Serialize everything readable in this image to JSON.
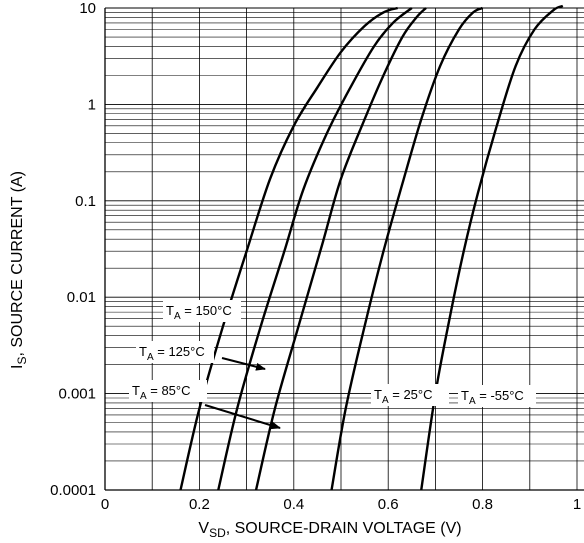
{
  "chart_data": {
    "type": "line",
    "x_scale": "linear",
    "y_scale": "log",
    "xlabel": {
      "main": "V",
      "sub": "SD",
      "rest": ", SOURCE-DRAIN VOLTAGE (V)"
    },
    "ylabel": {
      "main": "I",
      "sub": "S",
      "rest": ", SOURCE CURRENT (A)"
    },
    "xlim": [
      0,
      1.0
    ],
    "ylim": [
      0.0001,
      10
    ],
    "x_tick_labels": [
      "0",
      "0.2",
      "0.4",
      "0.6",
      "0.8",
      "1"
    ],
    "y_tick_labels": [
      "0.0001",
      "0.001",
      "0.01",
      "0.1",
      "1",
      "10"
    ],
    "grid": true,
    "series": [
      {
        "label_main": "T",
        "label_sub": "A",
        "label_rest": " = 150°C",
        "points": [
          [
            0.16,
            0.0001
          ],
          [
            0.2,
            0.0007
          ],
          [
            0.25,
            0.005
          ],
          [
            0.3,
            0.03
          ],
          [
            0.35,
            0.17
          ],
          [
            0.4,
            0.6
          ],
          [
            0.45,
            1.5
          ],
          [
            0.5,
            3.5
          ],
          [
            0.55,
            6.5
          ],
          [
            0.59,
            9
          ],
          [
            0.62,
            10
          ]
        ]
      },
      {
        "label_main": "T",
        "label_sub": "A",
        "label_rest": " = 125°C",
        "points": [
          [
            0.24,
            0.0001
          ],
          [
            0.28,
            0.0007
          ],
          [
            0.33,
            0.005
          ],
          [
            0.38,
            0.03
          ],
          [
            0.42,
            0.13
          ],
          [
            0.47,
            0.5
          ],
          [
            0.52,
            1.5
          ],
          [
            0.57,
            4
          ],
          [
            0.61,
            7
          ],
          [
            0.65,
            10
          ]
        ]
      },
      {
        "label_main": "T",
        "label_sub": "A",
        "label_rest": " = 85°C",
        "points": [
          [
            0.32,
            0.0001
          ],
          [
            0.36,
            0.0007
          ],
          [
            0.41,
            0.005
          ],
          [
            0.46,
            0.035
          ],
          [
            0.5,
            0.17
          ],
          [
            0.55,
            0.7
          ],
          [
            0.59,
            2
          ],
          [
            0.63,
            5
          ],
          [
            0.66,
            8
          ],
          [
            0.68,
            10
          ]
        ]
      },
      {
        "label_main": "T",
        "label_sub": "A",
        "label_rest": " = 25°C",
        "points": [
          [
            0.48,
            0.0001
          ],
          [
            0.51,
            0.0007
          ],
          [
            0.55,
            0.005
          ],
          [
            0.59,
            0.03
          ],
          [
            0.63,
            0.15
          ],
          [
            0.67,
            0.7
          ],
          [
            0.71,
            2.5
          ],
          [
            0.75,
            6
          ],
          [
            0.78,
            9
          ],
          [
            0.8,
            10
          ]
        ]
      },
      {
        "label_main": "T",
        "label_sub": "A",
        "label_rest": " = -55°C",
        "points": [
          [
            0.67,
            0.0001
          ],
          [
            0.7,
            0.001
          ],
          [
            0.73,
            0.006
          ],
          [
            0.76,
            0.03
          ],
          [
            0.79,
            0.12
          ],
          [
            0.83,
            0.6
          ],
          [
            0.87,
            2.5
          ],
          [
            0.91,
            6
          ],
          [
            0.95,
            9.5
          ],
          [
            0.97,
            10.5
          ]
        ]
      }
    ]
  }
}
